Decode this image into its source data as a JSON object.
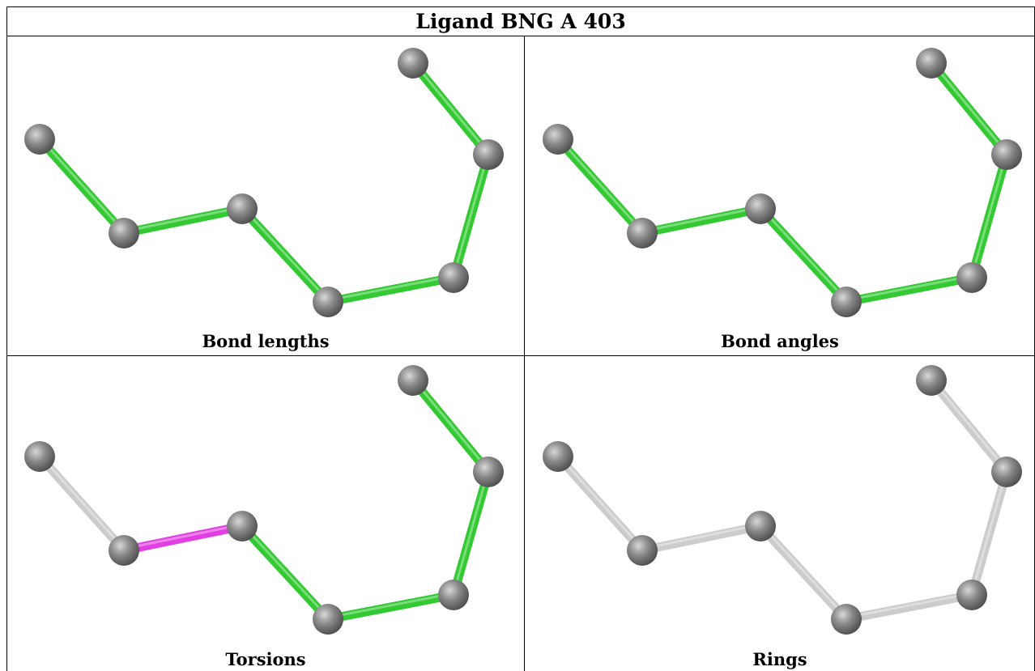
{
  "title": "Ligand BNG A 403",
  "panels": [
    {
      "caption": "Bond lengths",
      "bond_colors": [
        "#33c933",
        "#33c933",
        "#33c933",
        "#33c933",
        "#33c933",
        "#33c933",
        "#33c933"
      ]
    },
    {
      "caption": "Bond angles",
      "bond_colors": [
        "#33c933",
        "#33c933",
        "#33c933",
        "#33c933",
        "#33c933",
        "#33c933",
        "#33c933"
      ]
    },
    {
      "caption": "Torsions",
      "bond_colors": [
        "#cccccc",
        "#e23fe2",
        "#33c933",
        "#33c933",
        "#33c933",
        "#33c933",
        "#cccccc"
      ]
    },
    {
      "caption": "Rings",
      "bond_colors": [
        "#cccccc",
        "#cccccc",
        "#cccccc",
        "#cccccc",
        "#cccccc",
        "#cccccc",
        "#cccccc"
      ]
    }
  ],
  "colors": {
    "atom": "#7a7a7a",
    "green_bond": "#33c933",
    "magenta_bond": "#e23fe2",
    "gray_bond": "#cccccc"
  }
}
